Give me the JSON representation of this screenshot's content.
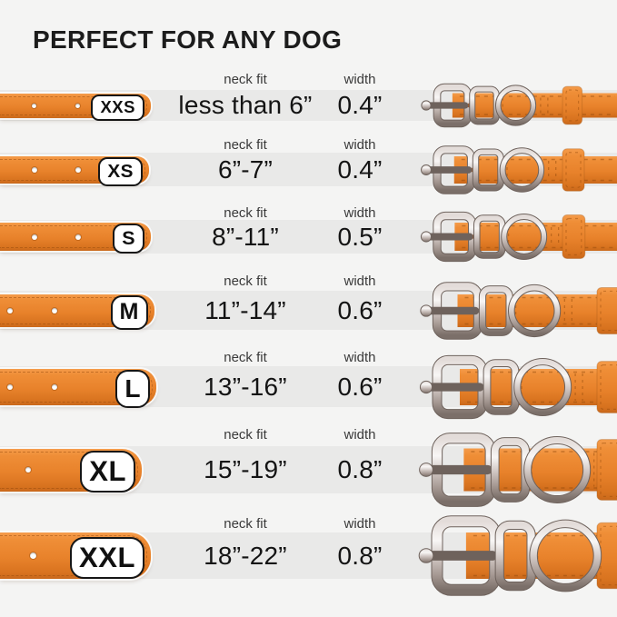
{
  "title": "PERFECT FOR ANY DOG",
  "column_headers": {
    "neck_fit": "neck fit",
    "width": "width"
  },
  "sizes": [
    {
      "label": "XXS",
      "neck_fit": "less than 6”",
      "width": "0.4”"
    },
    {
      "label": "XS",
      "neck_fit": "6”-7”",
      "width": "0.4”"
    },
    {
      "label": "S",
      "neck_fit": "8”-11”",
      "width": "0.5”"
    },
    {
      "label": "M",
      "neck_fit": "11”-14”",
      "width": "0.6”"
    },
    {
      "label": "L",
      "neck_fit": "13”-16”",
      "width": "0.6”"
    },
    {
      "label": "XL",
      "neck_fit": "15”-19”",
      "width": "0.8”"
    },
    {
      "label": "XXL",
      "neck_fit": "18”-22”",
      "width": "0.8”"
    }
  ],
  "graphics": {
    "left": "orange-collar-strap-with-size-badge",
    "right": "orange-collar-buckle-with-keeper-and-d-ring"
  },
  "colors": {
    "strap_orange": "#E8822B",
    "strap_orange_dark": "#C9681B",
    "metal_silver_light": "#F8F6F5",
    "metal_silver_dark": "#7B6F69",
    "band_gray": "#E9E9E8",
    "background": "#F4F4F3",
    "text_dark": "#1C1C1C",
    "badge_bg": "#FFFFFF",
    "badge_border": "#161616"
  }
}
